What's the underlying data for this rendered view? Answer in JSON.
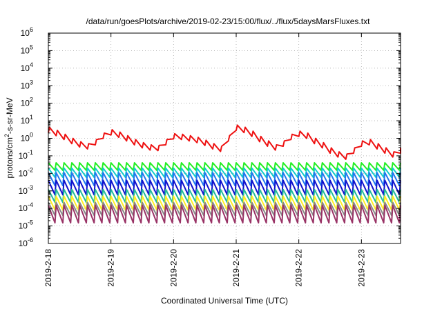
{
  "chart_data": {
    "type": "line",
    "title": "/data/run/goesPlots/archive/2019-02-23/15:00/flux/../flux/5daysMarsFluxes.txt",
    "xlabel": "Coordinated Universal Time (UTC)",
    "ylabel": {
      "base": "protons/cm",
      "sup": "2",
      "rest": "-s-sr-MeV"
    },
    "yscale": "log",
    "ylim": [
      1e-06,
      1000000.0
    ],
    "yticks": [
      {
        "base": "10",
        "exp": "-6"
      },
      {
        "base": "10",
        "exp": "-5"
      },
      {
        "base": "10",
        "exp": "-4"
      },
      {
        "base": "10",
        "exp": "-3"
      },
      {
        "base": "10",
        "exp": "-2"
      },
      {
        "base": "10",
        "exp": "-1"
      },
      {
        "base": "10",
        "exp": "0"
      },
      {
        "base": "10",
        "exp": "1"
      },
      {
        "base": "10",
        "exp": "2"
      },
      {
        "base": "10",
        "exp": "3"
      },
      {
        "base": "10",
        "exp": "4"
      },
      {
        "base": "10",
        "exp": "5"
      },
      {
        "base": "10",
        "exp": "6"
      }
    ],
    "xlim": [
      "2019-02-18",
      "2019-02-23 15:00"
    ],
    "xticks": [
      "2019-2-18",
      "2019-2-19",
      "2019-2-20",
      "2019-2-21",
      "2019-2-22",
      "2019-2-23"
    ],
    "grid": true,
    "colors": {
      "red": "#ee1111",
      "green": "#22ee22",
      "cyan": "#11cccc",
      "blue": "#2277ee",
      "navy": "#1111cc",
      "teal": "#22bb99",
      "yellow": "#ffee22",
      "gray": "#888888",
      "purple": "#993366",
      "grid": "#aaaaaa"
    },
    "series": [
      {
        "color": "red",
        "pattern": "envelope",
        "points": [
          [
            "2019-02-18 00:00",
            3.0
          ],
          [
            "2019-02-18 03:00",
            2.0
          ],
          [
            "2019-02-18 06:00",
            1.2
          ],
          [
            "2019-02-18 09:00",
            0.7
          ],
          [
            "2019-02-18 12:00",
            0.45
          ],
          [
            "2019-02-18 15:00",
            0.35
          ],
          [
            "2019-02-18 18:00",
            0.6
          ],
          [
            "2019-02-18 21:00",
            1.4
          ],
          [
            "2019-02-19 00:00",
            2.2
          ],
          [
            "2019-02-19 03:00",
            1.6
          ],
          [
            "2019-02-19 06:00",
            1.0
          ],
          [
            "2019-02-19 09:00",
            0.6
          ],
          [
            "2019-02-19 12:00",
            0.4
          ],
          [
            "2019-02-19 15:00",
            0.3
          ],
          [
            "2019-02-19 18:00",
            0.28
          ],
          [
            "2019-02-19 21:00",
            0.6
          ],
          [
            "2019-02-20 00:00",
            1.3
          ],
          [
            "2019-02-20 03:00",
            1.2
          ],
          [
            "2019-02-20 06:00",
            1.0
          ],
          [
            "2019-02-20 09:00",
            0.8
          ],
          [
            "2019-02-20 12:00",
            0.55
          ],
          [
            "2019-02-20 15:00",
            0.35
          ],
          [
            "2019-02-20 18:00",
            0.25
          ],
          [
            "2019-02-20 21:00",
            1.0
          ],
          [
            "2019-02-21 00:00",
            4.0
          ],
          [
            "2019-02-21 03:00",
            3.0
          ],
          [
            "2019-02-21 06:00",
            1.8
          ],
          [
            "2019-02-21 09:00",
            0.9
          ],
          [
            "2019-02-21 12:00",
            0.5
          ],
          [
            "2019-02-21 15:00",
            0.3
          ],
          [
            "2019-02-21 18:00",
            0.5
          ],
          [
            "2019-02-21 21:00",
            1.2
          ],
          [
            "2019-02-22 00:00",
            1.8
          ],
          [
            "2019-02-22 03:00",
            1.4
          ],
          [
            "2019-02-22 06:00",
            0.7
          ],
          [
            "2019-02-22 09:00",
            0.4
          ],
          [
            "2019-02-22 12:00",
            0.2
          ],
          [
            "2019-02-22 15:00",
            0.12
          ],
          [
            "2019-02-22 18:00",
            0.09
          ],
          [
            "2019-02-22 21:00",
            0.2
          ],
          [
            "2019-02-23 00:00",
            0.5
          ],
          [
            "2019-02-23 03:00",
            0.6
          ],
          [
            "2019-02-23 06:00",
            0.35
          ],
          [
            "2019-02-23 09:00",
            0.2
          ],
          [
            "2019-02-23 12:00",
            0.12
          ],
          [
            "2019-02-23 15:00",
            0.2
          ]
        ],
        "sawtooth_ratio": 2.0
      },
      {
        "color": "green",
        "pattern": "sawtooth",
        "peak": 0.04,
        "trough": 0.015
      },
      {
        "color": "cyan",
        "pattern": "sawtooth",
        "peak": 0.02,
        "trough": 0.006
      },
      {
        "color": "blue",
        "pattern": "sawtooth",
        "peak": 0.011,
        "trough": 0.002
      },
      {
        "color": "navy",
        "pattern": "sawtooth",
        "peak": 0.004,
        "trough": 0.0006
      },
      {
        "color": "teal",
        "pattern": "sawtooth",
        "peak": 0.0012,
        "trough": 0.00022
      },
      {
        "color": "yellow",
        "pattern": "sawtooth",
        "peak": 0.0005,
        "trough": 8e-05
      },
      {
        "color": "gray",
        "pattern": "sawtooth",
        "peak": 0.00022,
        "trough": 4e-05
      },
      {
        "color": "purple",
        "pattern": "sawtooth",
        "peak": 0.00015,
        "trough": 1.5e-05
      }
    ],
    "sawtooth_period_hours": 3
  }
}
